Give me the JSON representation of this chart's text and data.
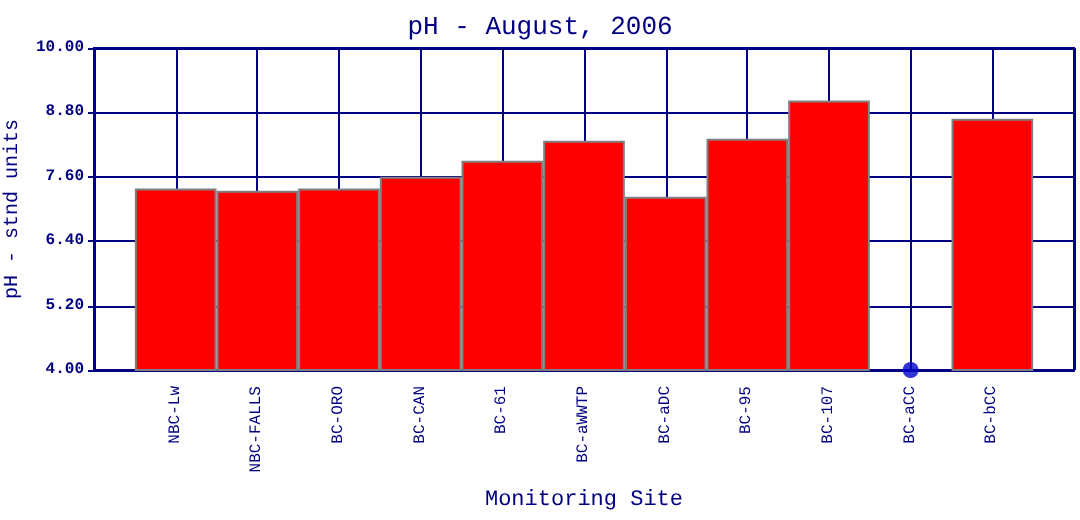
{
  "chart_data": {
    "type": "bar",
    "title": "pH - August, 2006",
    "xlabel": "Monitoring Site",
    "ylabel": "pH - stnd units",
    "categories": [
      "NBC-Lw",
      "NBC-FALLS",
      "BC-ORO",
      "BC-CAN",
      "BC-61",
      "BC-aWWTP",
      "BC-aDC",
      "BC-95",
      "BC-107",
      "BC-aCC",
      "BC-bCC"
    ],
    "series": [
      {
        "color": "#ff0000",
        "values": [
          7.38,
          7.34,
          7.38,
          7.6,
          7.9,
          8.27,
          7.23,
          8.31,
          9.02,
          null,
          8.68
        ]
      },
      {
        "type": "scatter",
        "color": "#0000cc",
        "x": [
          "BC-aCC"
        ],
        "values": [
          4.0
        ],
        "marker": "circle"
      }
    ],
    "ylim": [
      4,
      10
    ],
    "yticks": [
      {
        "value": 4,
        "label": "4.00"
      },
      {
        "value": 5.2,
        "label": "5.20"
      },
      {
        "value": 6.4,
        "label": "6.40"
      },
      {
        "value": 7.6,
        "label": "7.60"
      },
      {
        "value": 8.8,
        "label": "8.80"
      },
      {
        "value": 10,
        "label": "10.00"
      }
    ],
    "grid": true
  }
}
